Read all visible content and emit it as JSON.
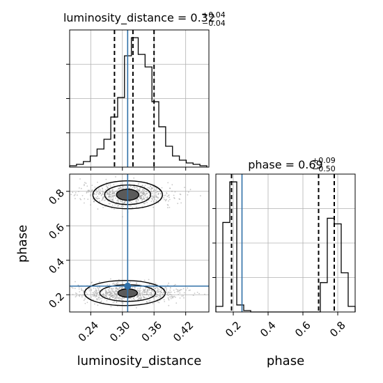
{
  "chart_data": {
    "type": "corner",
    "parameters": [
      "luminosity_distance",
      "phase"
    ],
    "titles": {
      "luminosity_distance": {
        "prefix": "luminosity_distance = ",
        "value": "0.32",
        "plus": "+0.04",
        "minus": "−0.04"
      },
      "phase": {
        "prefix": "phase = ",
        "value": "0.69",
        "plus": "+0.09",
        "minus": "−0.50"
      }
    },
    "axes": {
      "luminosity_distance": {
        "lim": [
          0.2,
          0.464
        ],
        "ticks": [
          0.24,
          0.3,
          0.36,
          0.42
        ],
        "tick_labels": [
          "0.24",
          "0.30",
          "0.36",
          "0.42"
        ],
        "label": "luminosity_distance"
      },
      "phase": {
        "lim": [
          0.1,
          0.9
        ],
        "ticks": [
          0.2,
          0.4,
          0.6,
          0.8
        ],
        "tick_labels": [
          "0.2",
          "0.4",
          "0.6",
          "0.8"
        ],
        "label": "phase"
      }
    },
    "truths": {
      "luminosity_distance": 0.31,
      "phase": 0.25
    },
    "hist_luminosity_distance": {
      "edges": [
        0.2,
        0.213,
        0.226,
        0.239,
        0.252,
        0.265,
        0.278,
        0.291,
        0.304,
        0.317,
        0.33,
        0.343,
        0.356,
        0.369,
        0.382,
        0.395,
        0.408,
        0.421,
        0.434,
        0.447,
        0.46
      ],
      "counts": [
        1,
        2,
        4,
        8,
        13,
        20,
        36,
        50,
        80,
        93,
        81,
        72,
        47,
        29,
        15,
        8,
        5,
        3,
        2,
        1
      ],
      "quantiles": [
        0.285,
        0.32,
        0.36
      ]
    },
    "hist_phase": {
      "edges": [
        0.1,
        0.14,
        0.18,
        0.22,
        0.26,
        0.3,
        0.34,
        0.38,
        0.42,
        0.46,
        0.5,
        0.54,
        0.58,
        0.62,
        0.66,
        0.7,
        0.74,
        0.78,
        0.82,
        0.86,
        0.9
      ],
      "counts": [
        4,
        64,
        93,
        5,
        1,
        0,
        0,
        0,
        0,
        0,
        0,
        0,
        0,
        0,
        0,
        21,
        67,
        63,
        28,
        4
      ],
      "quantiles": [
        0.19,
        0.69,
        0.78
      ]
    },
    "joint": {
      "modes": [
        {
          "center": [
            0.31,
            0.78
          ],
          "spread": [
            0.035,
            0.035
          ]
        },
        {
          "center": [
            0.31,
            0.21
          ],
          "spread": [
            0.04,
            0.03
          ]
        }
      ]
    },
    "colors": {
      "truth": "#3070a8",
      "hist": "#000000",
      "grid": "#b0b0b0",
      "scatter": "#9a9a9a",
      "contour_fill": "#5a5a5a"
    },
    "grid": true
  }
}
